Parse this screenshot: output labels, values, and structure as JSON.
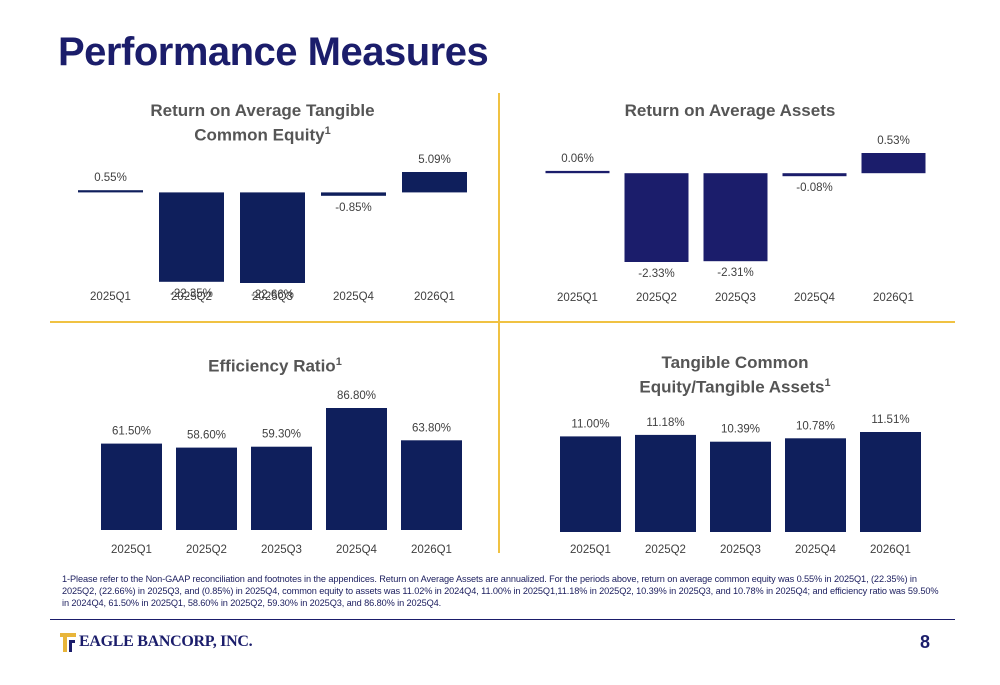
{
  "page": {
    "title": "Performance Measures",
    "page_number": "8",
    "footnote": "1-Please refer to the Non-GAAP reconciliation and footnotes in the appendices. Return on Average Assets are annualized. For the periods above, return on average common equity was 0.55% in 2025Q1, (22.35%) in 2025Q2, (22.66%) in 2025Q3, and (0.85%) in 2025Q4, common equity to assets was 11.02% in 2024Q4, 11.00% in 2025Q1,11.18% in 2025Q2, 10.39% in 2025Q3, and 10.78% in 2025Q4; and efficiency ratio was 59.50% in 2024Q4, 61.50% in 2025Q1, 58.60% in 2025Q2, 59.30% in 2025Q3, and 86.80% in 2025Q4.",
    "logo_text": "EAGLE BANCORP, INC."
  },
  "colors": {
    "bar": "#1b1d6b",
    "bar_dark": "#0f1f5c",
    "divider": "#f0c243",
    "title": "#1b1d6b",
    "chart_title": "#555555"
  },
  "chart_data": [
    {
      "id": "rotce",
      "type": "bar",
      "title": "Return on Average Tangible Common Equity",
      "title_lines": [
        "Return on Average Tangible",
        "Common Equity"
      ],
      "footnote_marker": "1",
      "categories": [
        "2025Q1",
        "2025Q2",
        "2025Q3",
        "2025Q4",
        "2026Q1"
      ],
      "values": [
        0.55,
        -22.35,
        -22.66,
        -0.85,
        5.09
      ],
      "labels": [
        "0.55%",
        "-22.35%",
        "-22.66%",
        "-0.85%",
        "5.09%"
      ],
      "ylim": [
        -22.66,
        5.09
      ],
      "xlabel": "",
      "ylabel": "",
      "grid": false,
      "legend": "none"
    },
    {
      "id": "roaa",
      "type": "bar",
      "title": "Return on Average Assets",
      "title_lines": [
        "Return on Average Assets"
      ],
      "footnote_marker": "",
      "categories": [
        "2025Q1",
        "2025Q2",
        "2025Q3",
        "2025Q4",
        "2026Q1"
      ],
      "values": [
        0.06,
        -2.33,
        -2.31,
        -0.08,
        0.53
      ],
      "labels": [
        "0.06%",
        "-2.33%",
        "-2.31%",
        "-0.08%",
        "0.53%"
      ],
      "ylim": [
        -2.33,
        0.53
      ],
      "xlabel": "",
      "ylabel": "",
      "grid": false,
      "legend": "none"
    },
    {
      "id": "efficiency",
      "type": "bar",
      "title": "Efficiency Ratio",
      "title_lines": [
        "Efficiency Ratio"
      ],
      "footnote_marker": "1",
      "categories": [
        "2025Q1",
        "2025Q2",
        "2025Q3",
        "2025Q4",
        "2026Q1"
      ],
      "values": [
        61.5,
        58.6,
        59.3,
        86.8,
        63.8
      ],
      "labels": [
        "61.50%",
        "58.60%",
        "59.30%",
        "86.80%",
        "63.80%"
      ],
      "ylim": [
        0,
        86.8
      ],
      "xlabel": "",
      "ylabel": "",
      "grid": false,
      "legend": "none"
    },
    {
      "id": "tce",
      "type": "bar",
      "title": "Tangible Common Equity/Tangible Assets",
      "title_lines": [
        "Tangible Common",
        "Equity/Tangible Assets"
      ],
      "footnote_marker": "1",
      "categories": [
        "2025Q1",
        "2025Q2",
        "2025Q3",
        "2025Q4",
        "2026Q1"
      ],
      "values": [
        11.0,
        11.18,
        10.39,
        10.78,
        11.51
      ],
      "labels": [
        "11.00%",
        "11.18%",
        "10.39%",
        "10.78%",
        "11.51%"
      ],
      "ylim": [
        0,
        11.51
      ],
      "xlabel": "",
      "ylabel": "",
      "grid": false,
      "legend": "none"
    }
  ]
}
